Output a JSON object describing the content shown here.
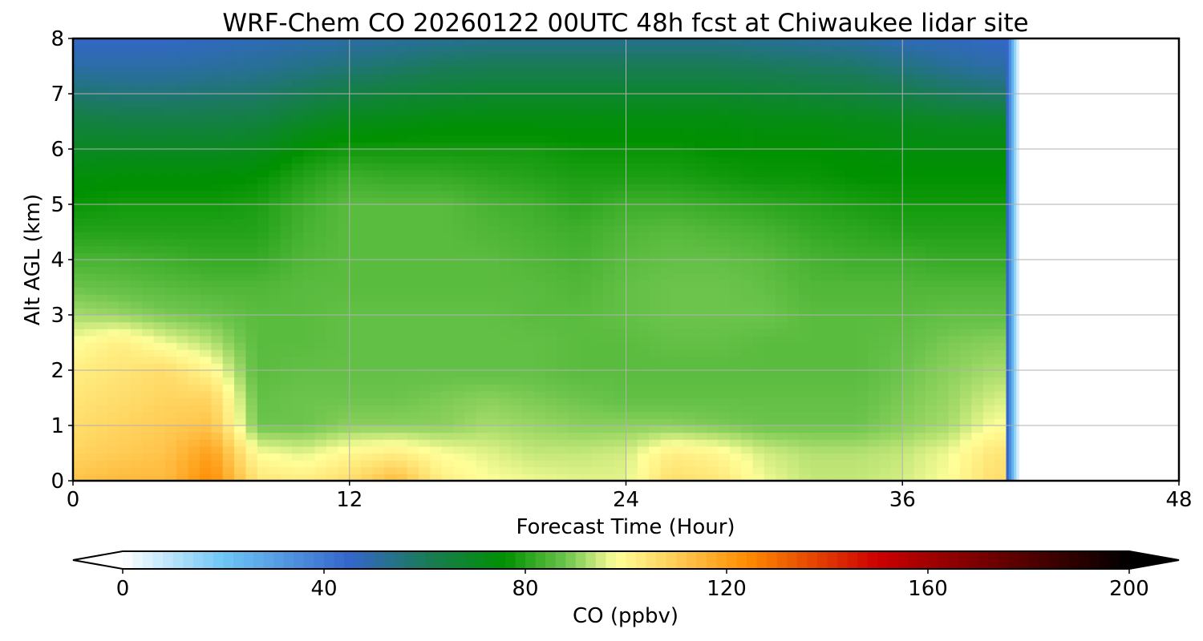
{
  "chart_data": {
    "type": "heatmap",
    "title": "WRF-Chem CO  20260122 00UTC 48h fcst at Chiwaukee lidar site",
    "xlabel": "Forecast Time (Hour)",
    "ylabel": "Alt AGL (km)",
    "xlim": [
      0,
      48
    ],
    "ylim": [
      0,
      8
    ],
    "x_ticks": [
      0,
      12,
      24,
      36,
      48
    ],
    "y_ticks": [
      0,
      1,
      2,
      3,
      4,
      5,
      6,
      7,
      8
    ],
    "grid": true,
    "data_extent_hours": [
      0,
      40.5
    ],
    "colorbar": {
      "label": "CO  (ppbv)",
      "range": [
        0,
        200
      ],
      "ticks": [
        0,
        40,
        80,
        120,
        160,
        200
      ],
      "extend": "both",
      "orientation": "horizontal",
      "stops": [
        {
          "value": 0,
          "color": "#ffffff"
        },
        {
          "value": 20,
          "color": "#6ec6f5"
        },
        {
          "value": 45,
          "color": "#3466cc"
        },
        {
          "value": 60,
          "color": "#1a7a5a"
        },
        {
          "value": 76,
          "color": "#009100"
        },
        {
          "value": 88,
          "color": "#6cc44c"
        },
        {
          "value": 98,
          "color": "#ffff99"
        },
        {
          "value": 110,
          "color": "#ffcc55"
        },
        {
          "value": 124,
          "color": "#ff8c00"
        },
        {
          "value": 150,
          "color": "#cc0000"
        },
        {
          "value": 200,
          "color": "#000000"
        }
      ]
    },
    "times_h": [
      0,
      2,
      4,
      6,
      8,
      10,
      12,
      14,
      16,
      18,
      20,
      22,
      24,
      26,
      28,
      30,
      32,
      34,
      36,
      38,
      40
    ],
    "altitudes_km": [
      0,
      0.5,
      1,
      1.5,
      2,
      2.5,
      3,
      3.5,
      4,
      4.5,
      5,
      5.5,
      6,
      6.5,
      7,
      7.5,
      8
    ],
    "values_ppbv": [
      [
        112,
        114,
        114,
        124,
        104,
        102,
        106,
        114,
        102,
        98,
        97,
        96,
        96,
        106,
        104,
        97,
        94,
        94,
        95,
        98,
        106
      ],
      [
        108,
        110,
        112,
        120,
        98,
        96,
        100,
        102,
        98,
        96,
        94,
        94,
        95,
        102,
        100,
        95,
        93,
        93,
        94,
        97,
        104
      ],
      [
        106,
        108,
        110,
        112,
        88,
        88,
        90,
        90,
        90,
        92,
        91,
        90,
        90,
        90,
        89,
        88,
        88,
        88,
        90,
        92,
        98
      ],
      [
        104,
        106,
        108,
        108,
        87,
        88,
        88,
        88,
        89,
        90,
        89,
        88,
        87,
        87,
        87,
        87,
        87,
        87,
        89,
        91,
        95
      ],
      [
        102,
        104,
        106,
        100,
        86,
        87,
        87,
        87,
        87,
        87,
        87,
        86,
        86,
        86,
        86,
        86,
        86,
        86,
        88,
        90,
        92
      ],
      [
        98,
        102,
        97,
        93,
        86,
        86,
        87,
        87,
        87,
        87,
        87,
        86,
        86,
        87,
        87,
        86,
        86,
        86,
        87,
        89,
        90
      ],
      [
        92,
        91,
        89,
        88,
        86,
        86,
        87,
        87,
        87,
        87,
        86,
        86,
        87,
        88,
        88,
        88,
        86,
        86,
        86,
        87,
        87
      ],
      [
        88,
        87,
        86,
        85,
        85,
        86,
        86,
        86,
        86,
        86,
        86,
        85,
        87,
        88,
        88,
        87,
        85,
        85,
        85,
        85,
        85
      ],
      [
        84,
        84,
        83,
        82,
        82,
        85,
        86,
        86,
        86,
        86,
        85,
        84,
        86,
        87,
        87,
        86,
        84,
        83,
        83,
        82,
        82
      ],
      [
        80,
        80,
        80,
        80,
        80,
        84,
        86,
        86,
        86,
        85,
        84,
        83,
        85,
        86,
        85,
        84,
        82,
        81,
        80,
        80,
        80
      ],
      [
        77,
        78,
        78,
        78,
        79,
        83,
        86,
        86,
        86,
        84,
        83,
        81,
        83,
        83,
        82,
        81,
        80,
        79,
        78,
        78,
        78
      ],
      [
        74,
        75,
        75,
        75,
        76,
        80,
        83,
        82,
        82,
        81,
        80,
        79,
        79,
        79,
        78,
        77,
        77,
        76,
        76,
        76,
        76
      ],
      [
        70,
        70,
        70,
        70,
        71,
        76,
        78,
        78,
        78,
        78,
        78,
        77,
        77,
        77,
        76,
        76,
        76,
        75,
        74,
        74,
        74
      ],
      [
        65,
        64,
        64,
        64,
        65,
        69,
        72,
        73,
        74,
        74,
        74,
        74,
        74,
        74,
        74,
        73,
        73,
        72,
        71,
        70,
        70
      ],
      [
        57,
        56,
        56,
        57,
        58,
        61,
        64,
        66,
        67,
        68,
        68,
        68,
        68,
        68,
        68,
        67,
        66,
        65,
        63,
        60,
        58
      ],
      [
        50,
        50,
        50,
        51,
        52,
        54,
        56,
        58,
        60,
        61,
        61,
        61,
        61,
        61,
        61,
        60,
        59,
        58,
        55,
        52,
        50
      ],
      [
        46,
        46,
        46,
        47,
        48,
        49,
        50,
        51,
        52,
        53,
        53,
        53,
        53,
        53,
        53,
        52,
        51,
        50,
        48,
        47,
        46
      ]
    ]
  }
}
